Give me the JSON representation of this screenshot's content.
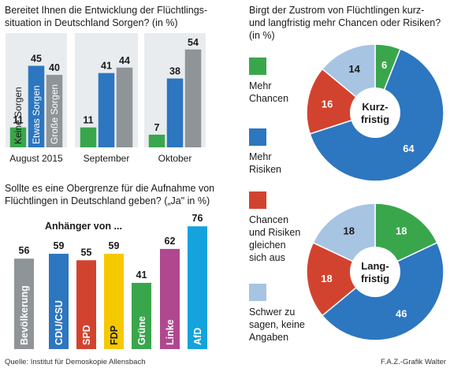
{
  "colors": {
    "green": "#3aa64c",
    "blue": "#2d76c0",
    "gray": "#8e9497",
    "red": "#d2432f",
    "yellow": "#f5c800",
    "darkblue": "#15569e",
    "lightblue": "#a7c4e3",
    "magenta": "#b0488f",
    "cyan": "#14a3dc",
    "panel": "#e9ecee"
  },
  "footer": {
    "source": "Quelle: Institut für Demoskopie Allensbach",
    "credit": "F.A.Z.-Grafik Walter"
  },
  "chart_data": [
    {
      "type": "bar",
      "title": "Bereitet Ihnen die Entwicklung der Flüchtlings- situation in Deutschland Sorgen? (in %)",
      "title_lines": [
        "Bereitet Ihnen die Entwicklung der Flüchtlings-",
        "situation in Deutschland Sorgen? (in %)"
      ],
      "categories": [
        "August 2015",
        "September",
        "Oktober"
      ],
      "series": [
        {
          "name": "Keine Sorgen",
          "values": [
            11,
            11,
            7
          ],
          "color": "#3aa64c"
        },
        {
          "name": "Etwas Sorgen",
          "values": [
            45,
            41,
            38
          ],
          "color": "#2d76c0"
        },
        {
          "name": "Große Sorgen",
          "values": [
            40,
            44,
            54
          ],
          "color": "#8e9497"
        }
      ],
      "ylim": [
        0,
        60
      ],
      "grid": false
    },
    {
      "type": "bar",
      "title": "Sollte es eine Obergrenze für die Aufnahme von Flüchtlingen in Deutschland geben? („Ja\" in %)",
      "title_lines": [
        "Sollte es eine Obergrenze für die Aufnahme von",
        "Flüchtlingen in Deutschland geben? („Ja\" in %)"
      ],
      "subtitle": "Anhänger von ...",
      "categories": [
        "Bevölkerung",
        "CDU/CSU",
        "SPD",
        "FDP",
        "Grüne",
        "Linke",
        "AfD"
      ],
      "values": [
        56,
        59,
        55,
        59,
        41,
        62,
        76
      ],
      "colors": [
        "#8e9497",
        "#2d76c0",
        "#d2432f",
        "#f5c800",
        "#3aa64c",
        "#b0488f",
        "#14a3dc"
      ],
      "ylim": [
        0,
        80
      ],
      "grid": false
    },
    {
      "type": "pie",
      "title": "Birgt der Zustrom von Flüchtlingen kurz- und langfristig mehr Chancen oder Risiken? (in %)",
      "title_lines": [
        "Birgt der Zustrom von Flüchtlingen kurz-",
        "und langfristig mehr Chancen oder Risiken?",
        "(in %)"
      ],
      "legend": [
        {
          "lines": [
            "Mehr",
            "Chancen"
          ],
          "color": "#3aa64c"
        },
        {
          "lines": [
            "Mehr",
            "Risiken"
          ],
          "color": "#2d76c0"
        },
        {
          "lines": [
            "Chancen",
            "und Risiken",
            "gleichen",
            "sich aus"
          ],
          "color": "#d2432f"
        },
        {
          "lines": [
            "Schwer zu",
            "sagen, keine",
            "Angaben"
          ],
          "color": "#a7c4e3"
        }
      ],
      "pies": [
        {
          "label_lines": [
            "Kurz-",
            "fristig"
          ],
          "values": [
            6,
            64,
            16,
            14
          ]
        },
        {
          "label_lines": [
            "Lang-",
            "fristig"
          ],
          "values": [
            18,
            46,
            18,
            18
          ]
        }
      ]
    }
  ]
}
